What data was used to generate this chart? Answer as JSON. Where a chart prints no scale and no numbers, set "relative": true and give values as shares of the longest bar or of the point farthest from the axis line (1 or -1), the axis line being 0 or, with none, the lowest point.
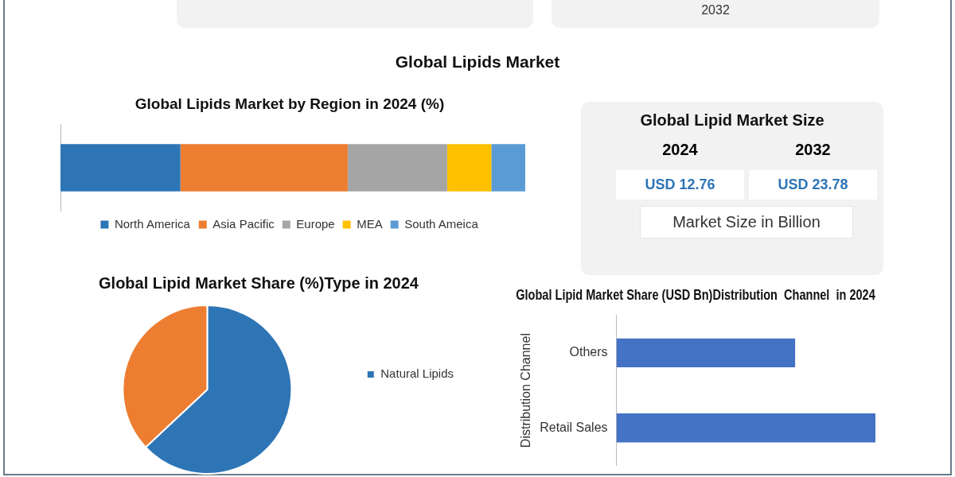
{
  "chart_data": [
    {
      "type": "other",
      "title": "Global Lipids Market",
      "annotations": [
        "2032"
      ]
    },
    {
      "type": "bar",
      "title": "Global Lipids Market by Region in 2024 (%)",
      "orientation": "horizontal",
      "stacked": true,
      "relative": true,
      "categories": [
        null
      ],
      "legend": "bottom",
      "series": [
        {
          "name": "North America",
          "color": "#2e75b6",
          "values": [
            0.258
          ]
        },
        {
          "name": "Asia Pacific",
          "color": "#ed7d31",
          "values": [
            0.36
          ]
        },
        {
          "name": "Europe",
          "color": "#a5a5a5",
          "values": [
            0.214
          ]
        },
        {
          "name": "MEA",
          "color": "#ffc000",
          "values": [
            0.095
          ]
        },
        {
          "name": "South Ameica",
          "color": "#5b9bd5",
          "values": [
            0.073
          ]
        }
      ]
    },
    {
      "type": "other",
      "title": "Global Lipid Market Size",
      "annotations": [
        "2024",
        "2032",
        "USD 12.76",
        "USD 23.78",
        "Market Size in Billion"
      ]
    },
    {
      "type": "pie",
      "title": "Global Lipid Market Share (%)Type in 2024",
      "categories": [
        "Natural Lipids",
        null
      ],
      "values": [
        63,
        37
      ],
      "colors": [
        "#2e75b6",
        "#ed7d31"
      ],
      "legend": "right"
    },
    {
      "type": "bar",
      "title": "Global Lipid Market Share (USD Bn)Distribution  Channel  in 2024",
      "orientation": "horizontal",
      "relative": true,
      "categories": [
        "Others",
        "Retail Sales"
      ],
      "values": [
        0.69,
        1
      ],
      "color": "#4472c4",
      "ylabel": "Distribution Channel"
    }
  ]
}
